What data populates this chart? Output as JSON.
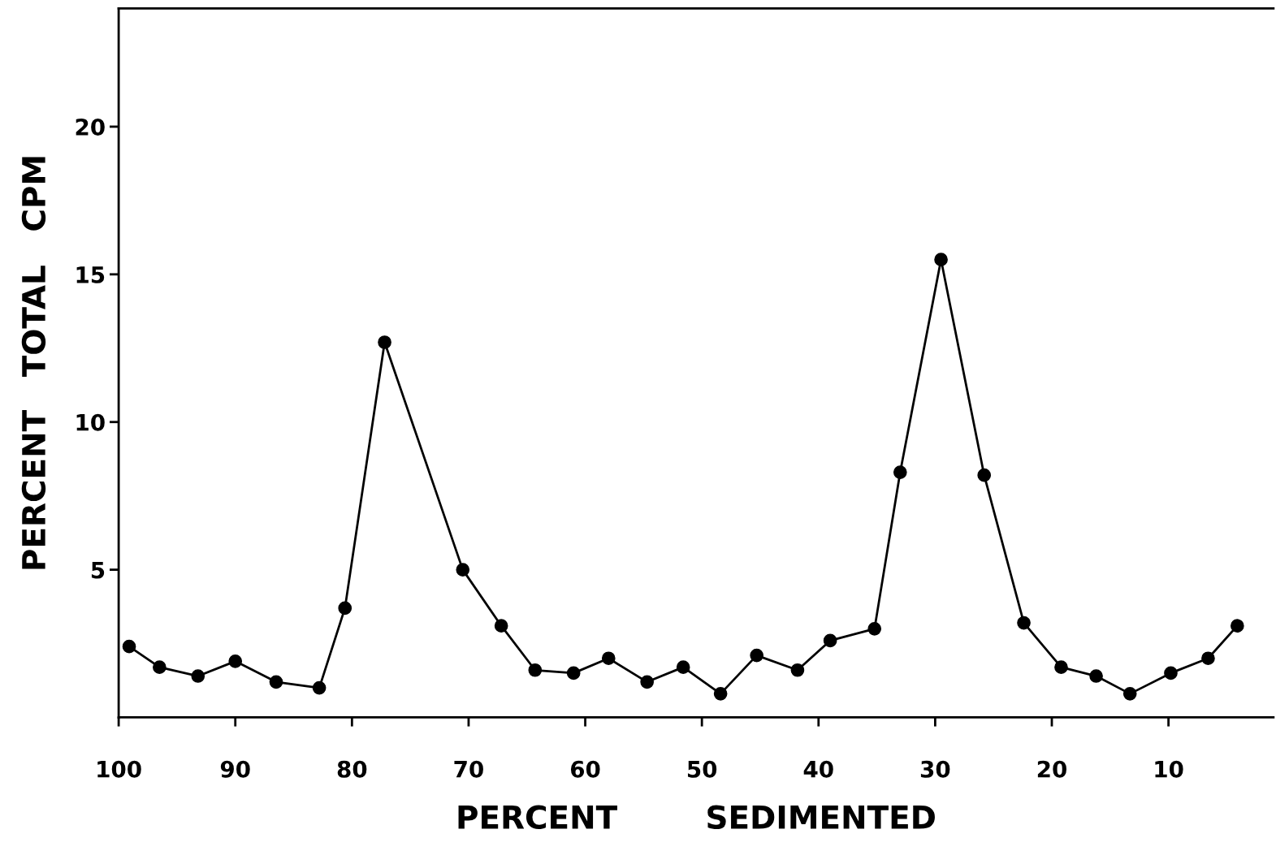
{
  "chart_data": {
    "type": "line",
    "xlabel": "PERCENT        SEDIMENTED",
    "ylabel": "PERCENT   TOTAL   CPM",
    "x": [
      99.1,
      96.5,
      93.2,
      90.0,
      86.5,
      82.8,
      80.6,
      77.2,
      70.5,
      67.2,
      64.3,
      61.0,
      58.0,
      54.7,
      51.6,
      48.4,
      45.3,
      41.8,
      39.0,
      35.2,
      33.0,
      29.5,
      25.8,
      22.4,
      19.2,
      16.2,
      13.3,
      9.8,
      6.6,
      4.1
    ],
    "series": [
      {
        "color": "#000000",
        "values": [
          2.4,
          1.7,
          1.4,
          1.9,
          1.2,
          1.0,
          3.7,
          12.7,
          5.0,
          3.1,
          1.6,
          1.5,
          2.0,
          1.2,
          1.7,
          0.8,
          2.1,
          1.6,
          2.6,
          3.0,
          8.3,
          15.5,
          8.2,
          3.2,
          1.7,
          1.4,
          0.8,
          1.5,
          2.0,
          3.1
        ]
      }
    ],
    "xlim": [
      100,
      1
    ],
    "ylim": [
      0,
      24
    ],
    "xticks": [
      100,
      90,
      80,
      70,
      60,
      50,
      40,
      30,
      20,
      10
    ],
    "yticks": [
      5,
      10,
      15,
      20
    ],
    "marker": "circle",
    "line_style": "solid",
    "grid": false,
    "legend": false
  }
}
